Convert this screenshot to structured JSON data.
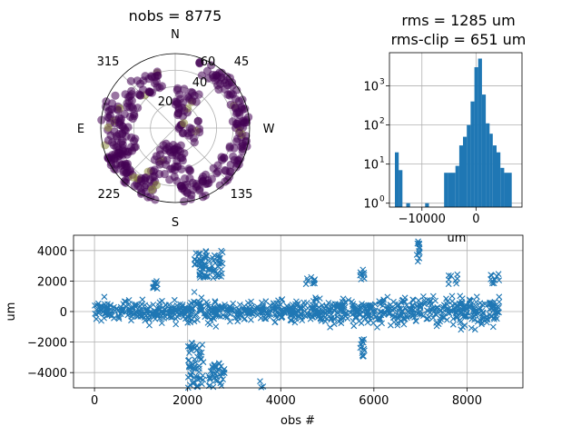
{
  "chart_data": [
    {
      "type": "scatter",
      "subtype": "polar",
      "title": "nobs = 8775",
      "compass_labels": {
        "N": "N",
        "E": "E",
        "S": "S",
        "W": "W"
      },
      "azimuth_ticks": [
        "45",
        "135",
        "225",
        "315"
      ],
      "radial_ticks": [
        "20",
        "40",
        "60"
      ],
      "theta_direction": "clockwise, 0 at top (N), W on right",
      "colormap": "viridis (mostly dark purple, few olive points)",
      "point_colors": {
        "main": "#440154",
        "alt": "#8d8c3d"
      },
      "clusters": [
        {
          "az_range": [
            20,
            100
          ],
          "el_range": [
            0,
            20
          ],
          "n": 70
        },
        {
          "az_range": [
            100,
            175
          ],
          "el_range": [
            0,
            25
          ],
          "n": 70
        },
        {
          "az_range": [
            160,
            215
          ],
          "el_range": [
            20,
            70
          ],
          "n": 60
        },
        {
          "az_range": [
            195,
            250
          ],
          "el_range": [
            0,
            20
          ],
          "n": 60
        },
        {
          "az_range": [
            240,
            300
          ],
          "el_range": [
            0,
            40
          ],
          "n": 80
        },
        {
          "az_range": [
            300,
            345
          ],
          "el_range": [
            10,
            40
          ],
          "n": 35
        },
        {
          "az_range": [
            0,
            40
          ],
          "el_range": [
            40,
            75
          ],
          "n": 30
        },
        {
          "az_range": [
            60,
            130
          ],
          "el_range": [
            60,
            88
          ],
          "n": 20
        }
      ]
    },
    {
      "type": "bar",
      "subtype": "histogram",
      "title": "rms = 1285 um",
      "subtitle": "rms-clip = 651 um",
      "xlabel": "um",
      "yscale": "log",
      "xlim": [
        -16000,
        8500
      ],
      "ylim_exp": [
        -0.1,
        3.85
      ],
      "xticks": [
        -10000,
        0
      ],
      "xtick_labels": [
        "−10000",
        "0"
      ],
      "yticks_exp": [
        0,
        1,
        2,
        3
      ],
      "ytick_labels": [
        "10",
        "10",
        "10",
        "10"
      ],
      "ytick_exponents": [
        "0",
        "1",
        "2",
        "3"
      ],
      "bin_edges": [
        -15000,
        -14300,
        -13600,
        -12900,
        -12200,
        -11500,
        -10800,
        -10100,
        -9400,
        -8700,
        -8000,
        -7300,
        -6600,
        -5900,
        -5200,
        -4500,
        -3800,
        -3100,
        -2400,
        -1700,
        -1000,
        -300,
        400,
        1100,
        1800,
        2500,
        3100,
        3800,
        4500,
        5200,
        5900,
        6600,
        7300
      ],
      "counts": [
        20,
        7,
        0,
        1,
        0,
        0,
        0,
        0,
        1,
        0,
        0,
        0,
        0,
        6,
        6,
        6,
        9,
        30,
        50,
        100,
        400,
        3000,
        5000,
        600,
        110,
        60,
        30,
        20,
        8,
        6,
        6,
        0
      ],
      "bar_color": "#1f77b4",
      "grid": true
    },
    {
      "type": "scatter",
      "xlabel": "obs #",
      "ylabel": "um",
      "xlim": [
        -450,
        9200
      ],
      "ylim": [
        -5000,
        5000
      ],
      "xticks": [
        0,
        2000,
        4000,
        6000,
        8000
      ],
      "yticks": [
        -4000,
        -2000,
        0,
        2000,
        4000
      ],
      "ytick_labels": [
        "−4000",
        "−2000",
        "0",
        "2000",
        "4000"
      ],
      "marker": "x",
      "color": "#1f77b4",
      "grid": true,
      "n_points": 8775,
      "segments": [
        {
          "x": [
            0,
            2000
          ],
          "y_center": 0,
          "y_spread": 700
        },
        {
          "x": [
            2000,
            2800
          ],
          "y_center": 0,
          "y_spread": 900
        },
        {
          "x": [
            2800,
            6000
          ],
          "y_center": 0,
          "y_spread": 800
        },
        {
          "x": [
            6000,
            8700
          ],
          "y_center": 0,
          "y_spread": 1000
        }
      ],
      "outlier_groups": [
        {
          "x": [
            2150,
            2750
          ],
          "y": [
            2200,
            4000
          ],
          "n": 80
        },
        {
          "x": [
            2000,
            2350
          ],
          "y": [
            -5000,
            -2000
          ],
          "n": 60
        },
        {
          "x": [
            2450,
            2800
          ],
          "y": [
            -5000,
            -3300
          ],
          "n": 40
        },
        {
          "x": [
            1250,
            1350
          ],
          "y": [
            1500,
            2100
          ],
          "n": 10
        },
        {
          "x": [
            5700,
            5800
          ],
          "y": [
            -3000,
            -1800
          ],
          "n": 15
        },
        {
          "x": [
            5700,
            5800
          ],
          "y": [
            2000,
            2800
          ],
          "n": 8
        },
        {
          "x": [
            6920,
            6990
          ],
          "y": [
            3200,
            5000
          ],
          "n": 12
        },
        {
          "x": [
            3550,
            3650
          ],
          "y": [
            -5000,
            -4500
          ],
          "n": 3
        },
        {
          "x": [
            4500,
            4750
          ],
          "y": [
            1800,
            2300
          ],
          "n": 10
        },
        {
          "x": [
            7600,
            7800
          ],
          "y": [
            1800,
            2500
          ],
          "n": 8
        },
        {
          "x": [
            8500,
            8700
          ],
          "y": [
            1800,
            2500
          ],
          "n": 10
        }
      ]
    }
  ]
}
